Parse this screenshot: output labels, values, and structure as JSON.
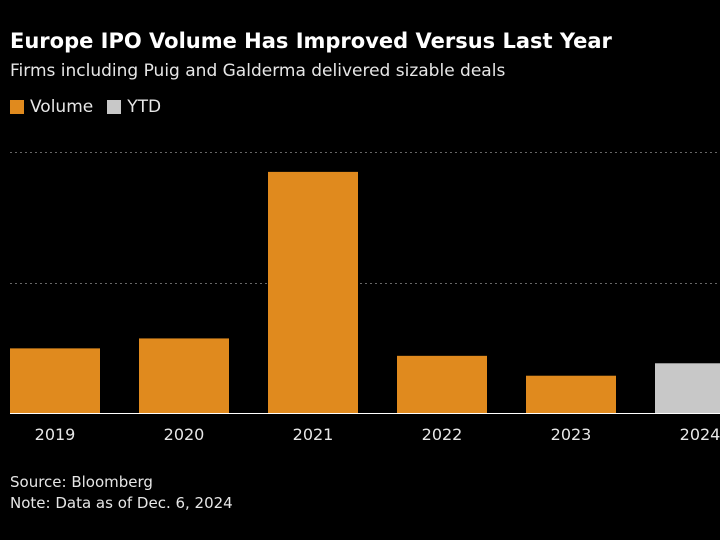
{
  "chart_data": {
    "type": "bar",
    "title": "Europe IPO Volume Has Improved Versus Last Year",
    "subtitle": "Firms including Puig and Galderma delivered sizable deals",
    "categories": [
      "2019",
      "2020",
      "2021",
      "2022",
      "2023",
      "2024"
    ],
    "values": [
      26,
      30,
      97,
      23,
      15,
      20
    ],
    "series": [
      {
        "name": "Volume",
        "color": "#e08a1e"
      },
      {
        "name": "YTD",
        "color": "#c8c8c8"
      }
    ],
    "bar_series": [
      "Volume",
      "Volume",
      "Volume",
      "Volume",
      "Volume",
      "YTD"
    ],
    "ylim": [
      0,
      105
    ],
    "gridlines": [
      52.5
    ],
    "xlabel": "",
    "ylabel": "",
    "source": "Source: Bloomberg",
    "note": "Note: Data as of Dec. 6, 2024"
  },
  "colors": {
    "background": "#000000",
    "volume": "#e08a1e",
    "ytd": "#c8c8c8",
    "grid": "#666666",
    "axis": "#ffffff"
  }
}
